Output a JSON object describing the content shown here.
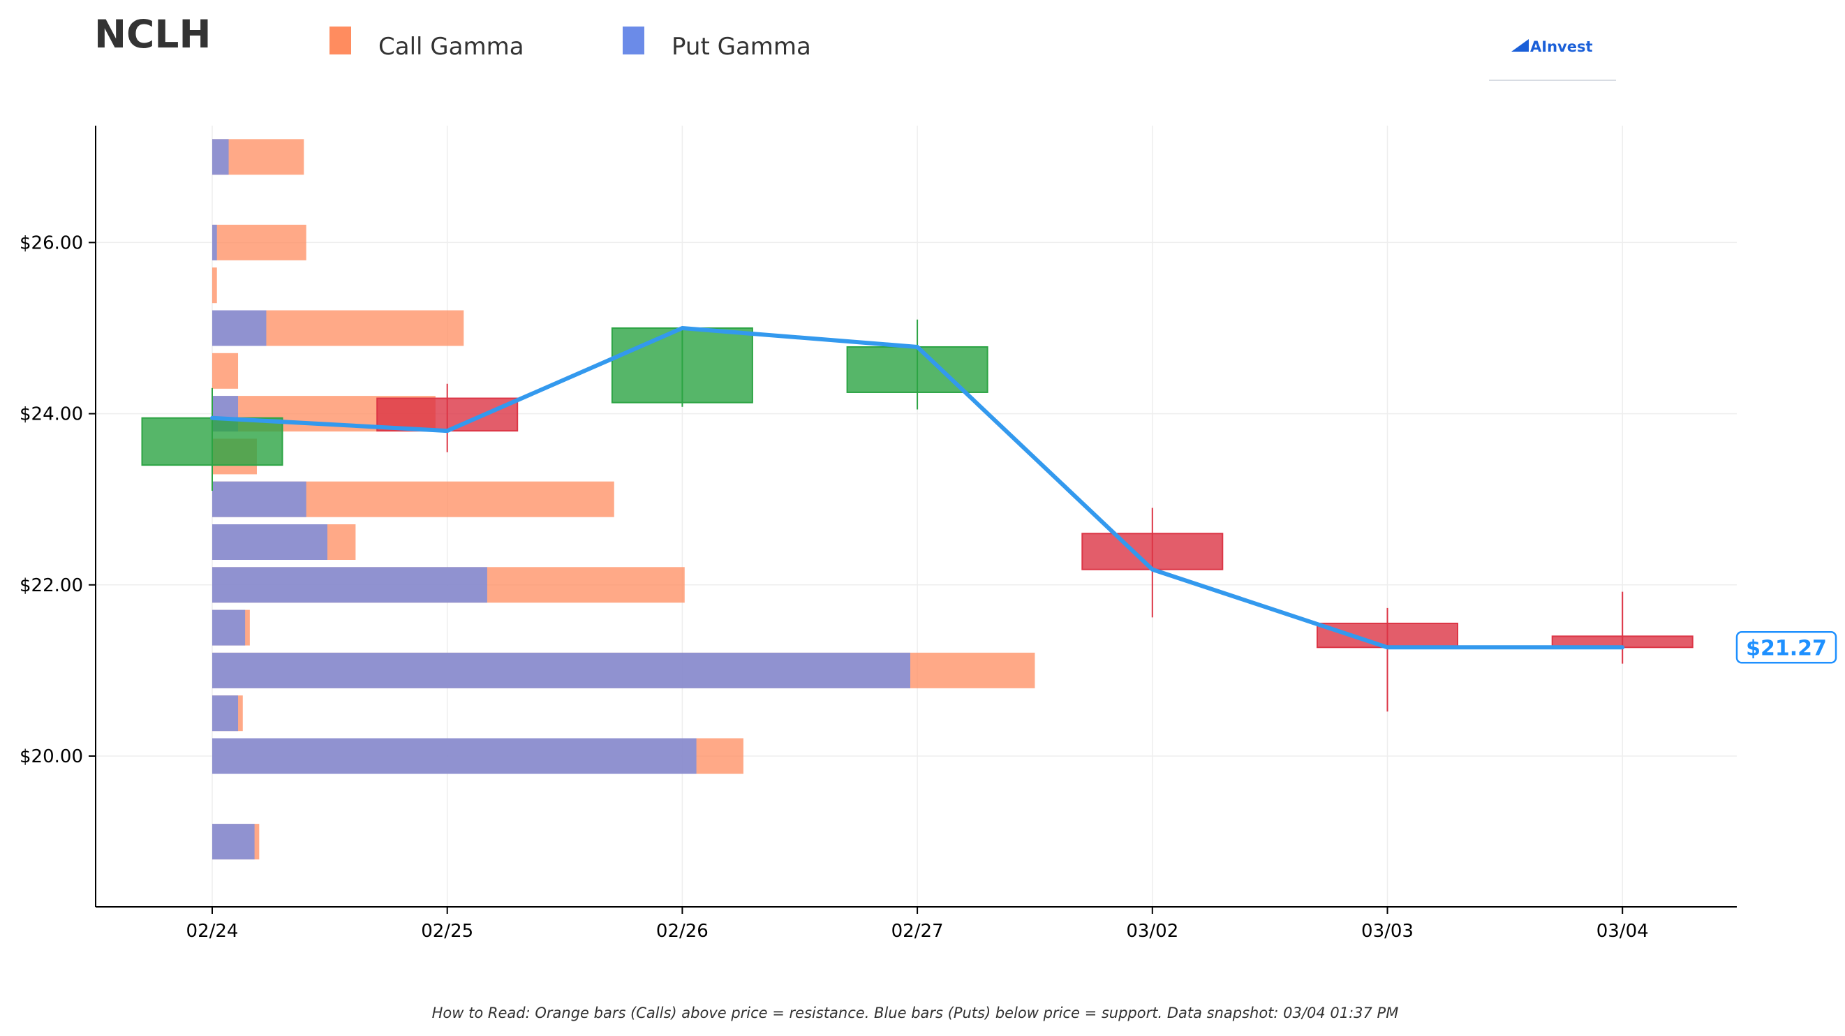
{
  "ticker": "NCLH",
  "brand": "AInvest",
  "legend": [
    {
      "label": "Call Gamma",
      "color": "#ff8c5f"
    },
    {
      "label": "Put Gamma",
      "color": "#6b8be8"
    }
  ],
  "footnote": "How to Read: Orange bars (Calls) above price = resistance. Blue bars (Puts) below price = support. Data snapshot: 03/04 01:37 PM",
  "current_price_label": "$21.27",
  "colors": {
    "call": "#ff8c5f",
    "put": "#6b8be8",
    "up": "#2ca444",
    "down": "#dc3545",
    "price_line": "#3399ee",
    "price_label": "#1e90ff"
  },
  "chart_data": {
    "type": "candlestick",
    "title": "NCLH",
    "x_labels": [
      "02/24",
      "02/25",
      "02/26",
      "02/27",
      "03/02",
      "03/03",
      "03/04"
    ],
    "y_ticks": [
      20,
      22,
      24,
      26
    ],
    "y_tick_labels": [
      "$20.00",
      "$22.00",
      "$24.00",
      "$26.00"
    ],
    "ylim": [
      18.3,
      27.4
    ],
    "candles": [
      {
        "date": "02/24",
        "open": 23.4,
        "close": 23.95,
        "high": 24.3,
        "low": 23.1
      },
      {
        "date": "02/25",
        "open": 24.18,
        "close": 23.8,
        "high": 24.35,
        "low": 23.55
      },
      {
        "date": "02/26",
        "open": 24.13,
        "close": 25.0,
        "high": 25.0,
        "low": 24.08
      },
      {
        "date": "02/27",
        "open": 24.25,
        "close": 24.78,
        "high": 25.1,
        "low": 24.05
      },
      {
        "date": "03/02",
        "open": 22.6,
        "close": 22.18,
        "high": 22.9,
        "low": 21.62
      },
      {
        "date": "03/03",
        "open": 21.55,
        "close": 21.27,
        "high": 21.73,
        "low": 20.52
      },
      {
        "date": "03/04",
        "open": 21.4,
        "close": 21.27,
        "high": 21.92,
        "low": 21.08
      }
    ],
    "price_line": [
      23.95,
      23.8,
      25.0,
      24.78,
      22.18,
      21.27,
      21.27
    ],
    "gamma_bars": [
      {
        "strike": 27.0,
        "put": 0.07,
        "total": 0.39
      },
      {
        "strike": 26.0,
        "put": 0.02,
        "total": 0.4
      },
      {
        "strike": 25.5,
        "put": 0.0,
        "total": 0.02
      },
      {
        "strike": 25.0,
        "put": 0.23,
        "total": 1.07
      },
      {
        "strike": 24.5,
        "put": 0.0,
        "total": 0.11
      },
      {
        "strike": 24.0,
        "put": 0.11,
        "total": 0.95
      },
      {
        "strike": 23.5,
        "put": 0.0,
        "total": 0.19
      },
      {
        "strike": 23.0,
        "put": 0.4,
        "total": 1.71
      },
      {
        "strike": 22.5,
        "put": 0.49,
        "total": 0.61
      },
      {
        "strike": 22.0,
        "put": 1.17,
        "total": 2.01
      },
      {
        "strike": 21.5,
        "put": 0.14,
        "total": 0.16
      },
      {
        "strike": 21.0,
        "put": 2.97,
        "total": 3.5
      },
      {
        "strike": 20.5,
        "put": 0.11,
        "total": 0.13
      },
      {
        "strike": 20.0,
        "put": 2.06,
        "total": 2.26
      },
      {
        "strike": 19.0,
        "put": 0.18,
        "total": 0.2
      }
    ],
    "grid": true,
    "legend_position": "top-left"
  }
}
